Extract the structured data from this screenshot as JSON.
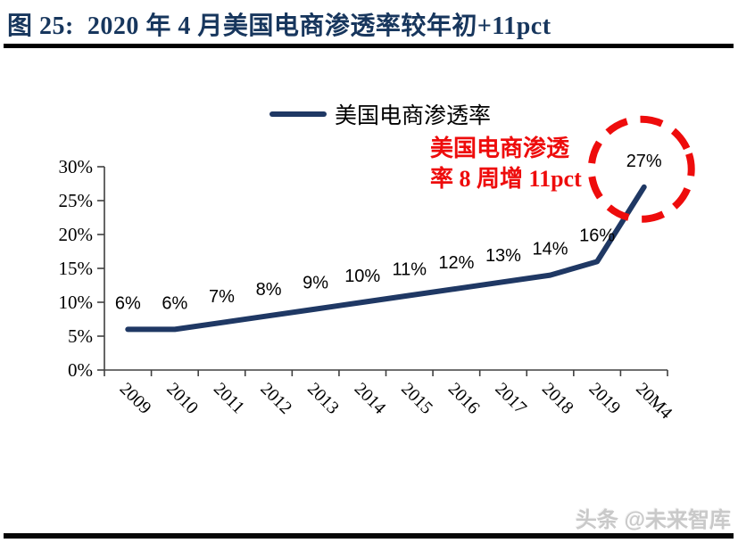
{
  "title": "图 25:  2020 年 4 月美国电商渗透率较年初+11pct",
  "watermark": "头条 @未来智库",
  "chart_data": {
    "type": "line",
    "title": "2020 年 4 月美国电商渗透率较年初+11pct",
    "categories": [
      "2009",
      "2010",
      "2011",
      "2012",
      "2013",
      "2014",
      "2015",
      "2016",
      "2017",
      "2018",
      "2019",
      "20M4"
    ],
    "series": [
      {
        "name": "美国电商渗透率",
        "values": [
          6,
          6,
          7,
          8,
          9,
          10,
          11,
          12,
          13,
          14,
          16,
          27
        ]
      }
    ],
    "data_labels": [
      "6%",
      "6%",
      "7%",
      "8%",
      "9%",
      "10%",
      "11%",
      "12%",
      "13%",
      "14%",
      "16%",
      "27%"
    ],
    "y_ticks": [
      "0%",
      "5%",
      "10%",
      "15%",
      "20%",
      "25%",
      "30%"
    ],
    "ylim": [
      0,
      30
    ],
    "y_tick_step": 5,
    "grid": false,
    "legend_position": "top",
    "annotation": {
      "text_line1": "美国电商渗透",
      "text_line2": "率 8 周增 11pct",
      "highlight_value": "27%"
    },
    "colors": {
      "line": "#1f3864",
      "annotation": "#ee0c0c",
      "axis": "#404040",
      "title": "#17365d",
      "data_label": "#000000"
    }
  }
}
